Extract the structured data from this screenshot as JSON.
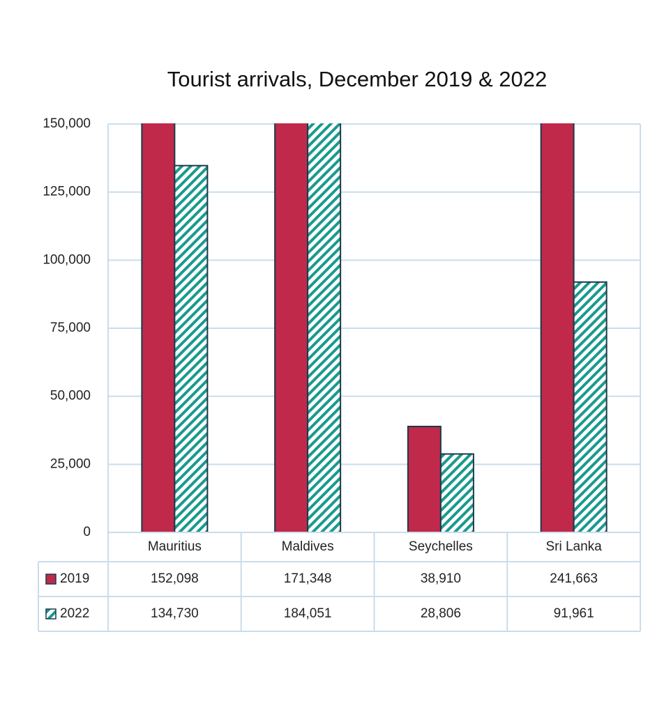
{
  "chart_data": {
    "type": "bar",
    "title": "Tourist arrivals, December 2019 & 2022",
    "categories": [
      "Mauritius",
      "Maldives",
      "Seychelles",
      "Sri Lanka"
    ],
    "series": [
      {
        "name": "2019",
        "color": "#c0294a",
        "values": [
          152098,
          171348,
          38910,
          241663
        ],
        "value_labels": [
          "152,098",
          "171,348",
          "38,910",
          "241,663"
        ]
      },
      {
        "name": "2022",
        "color": "#1a9a8e",
        "values": [
          134730,
          184051,
          28806,
          91961
        ],
        "value_labels": [
          "134,730",
          "184,051",
          "28,806",
          "91,961"
        ]
      }
    ],
    "ylim": [
      0,
      150000
    ],
    "yticks": [
      0,
      {
        "value": 25000,
        "label": "25,000"
      },
      {
        "value": 50000,
        "label": "50,000"
      },
      {
        "value": 75000,
        "label": "75,000"
      },
      {
        "value": 100000,
        "label": "100,000"
      },
      {
        "value": 125000,
        "label": "125,000"
      },
      {
        "value": 150000,
        "label": "150,000"
      }
    ],
    "grid": true
  }
}
